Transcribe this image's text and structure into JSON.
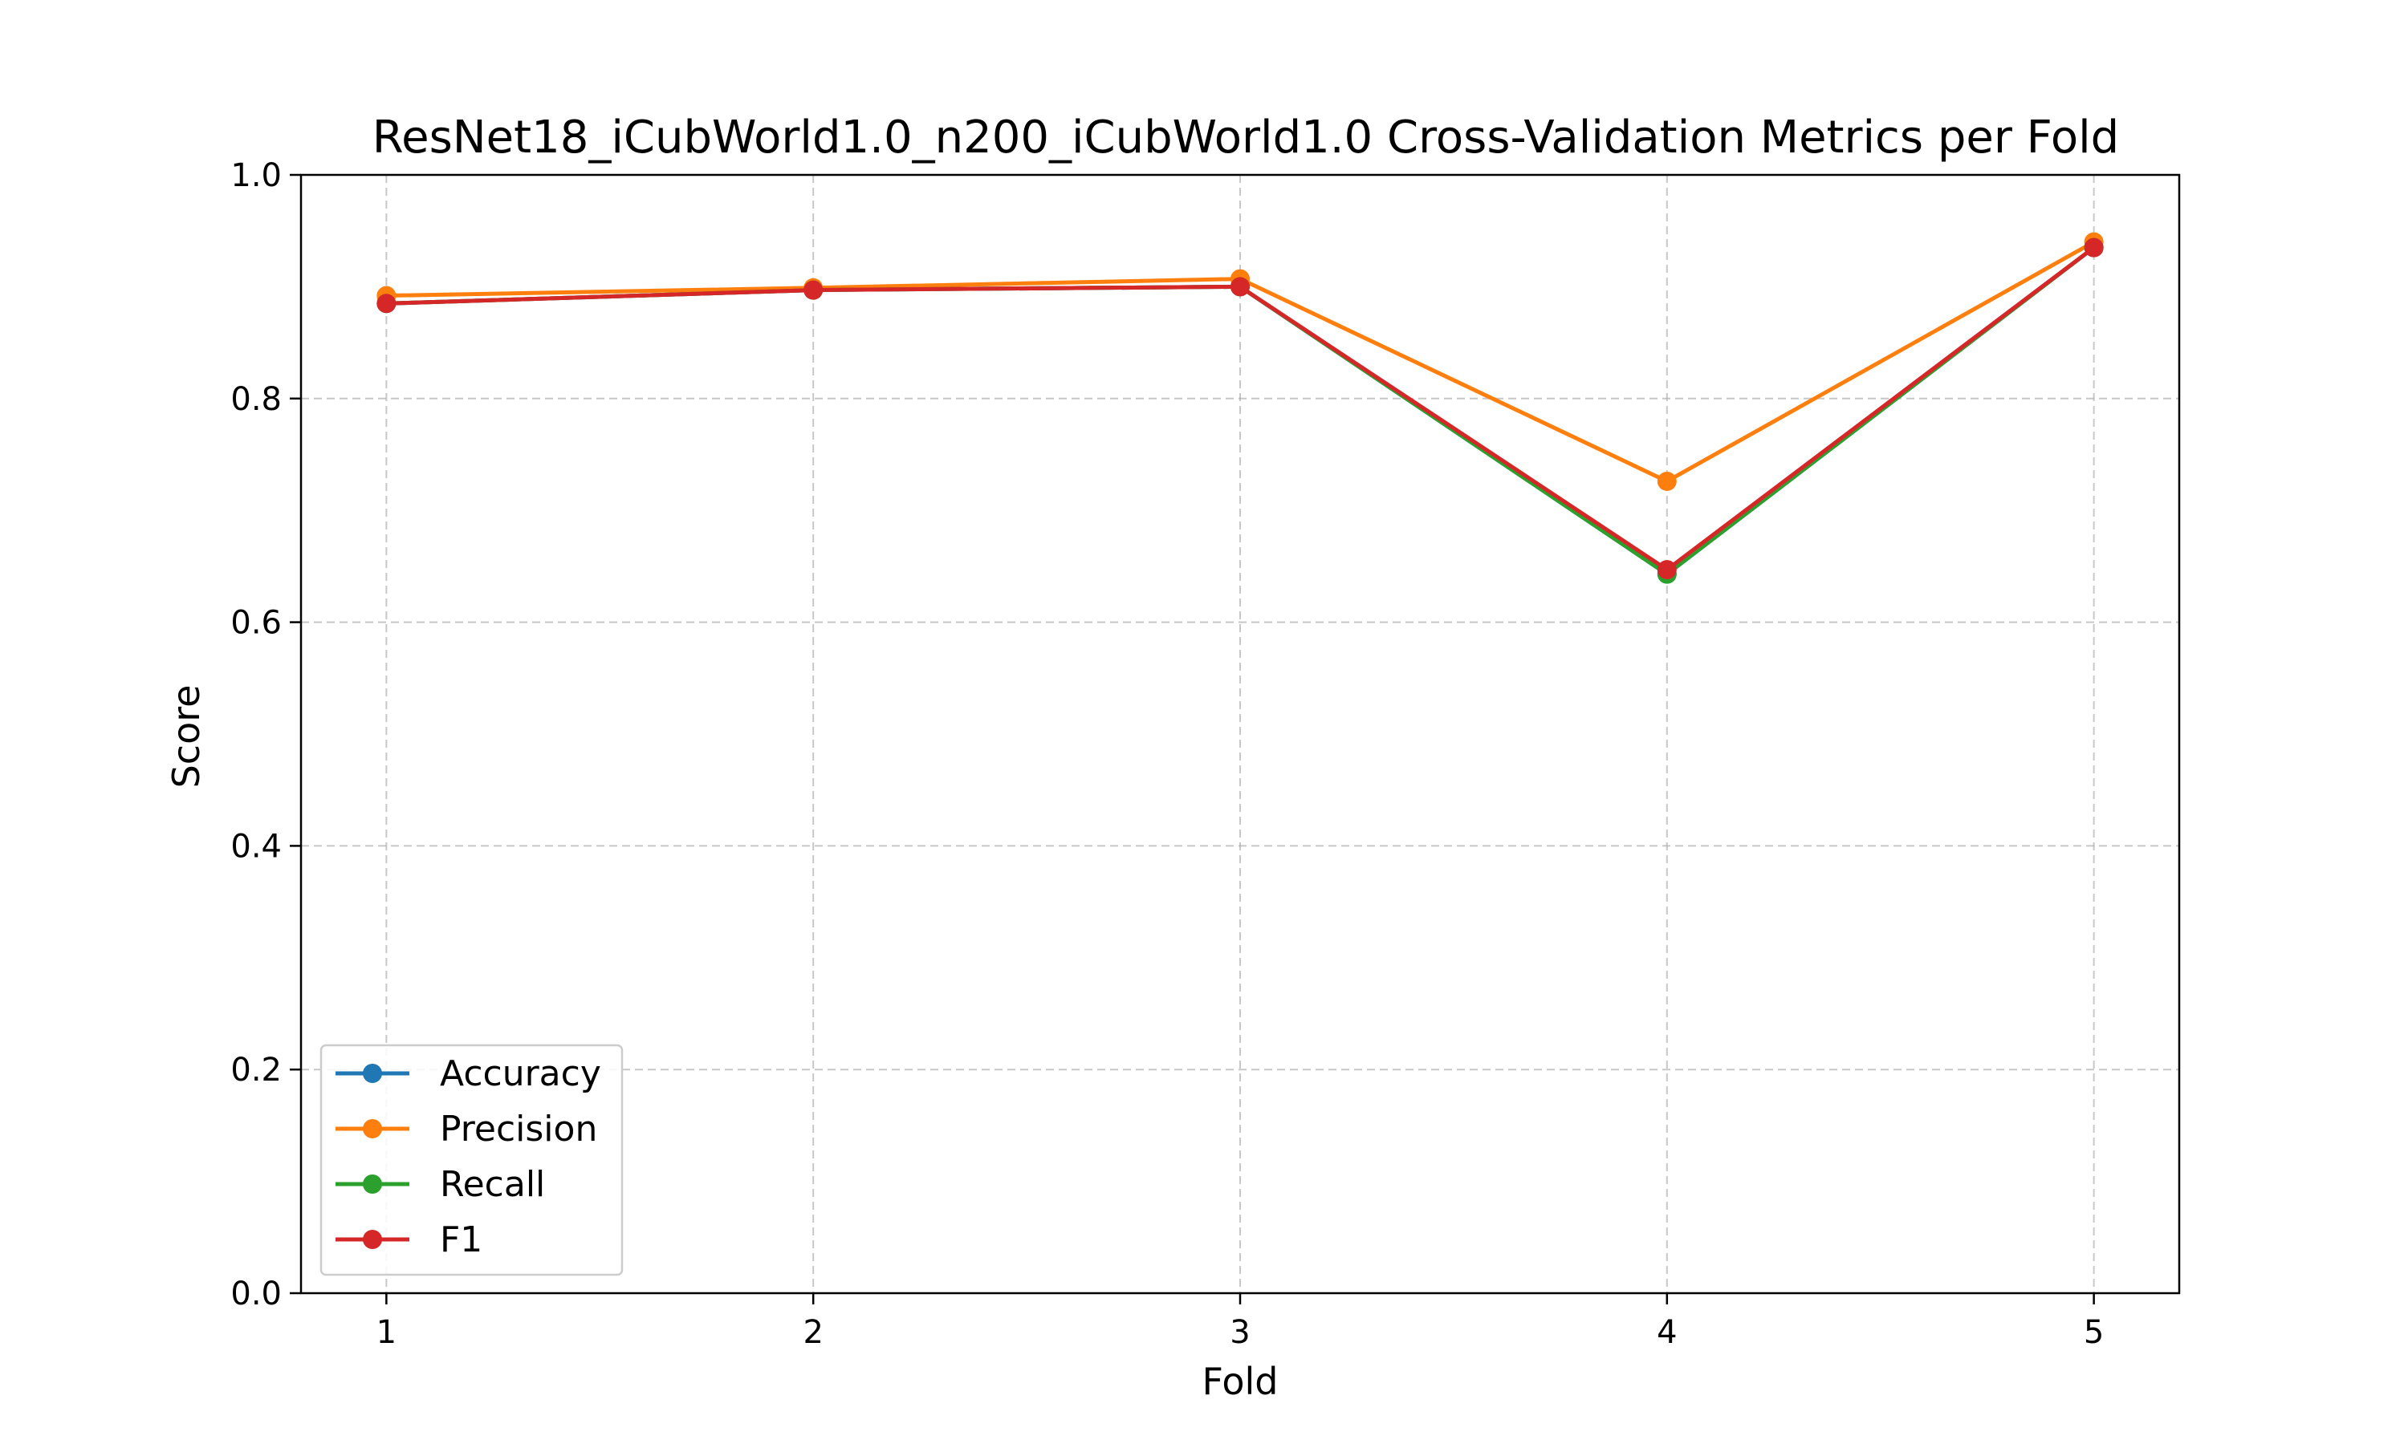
{
  "chart_data": {
    "type": "line",
    "title": "ResNet18_iCubWorld1.0_n200_iCubWorld1.0 Cross-Validation Metrics per Fold",
    "xlabel": "Fold",
    "ylabel": "Score",
    "x": [
      1,
      2,
      3,
      4,
      5
    ],
    "xlim": [
      0.8,
      5.2
    ],
    "ylim": [
      0.0,
      1.0
    ],
    "x_ticks": [
      "1",
      "2",
      "3",
      "4",
      "5"
    ],
    "y_ticks": [
      "0.0",
      "0.2",
      "0.4",
      "0.6",
      "0.8",
      "1.0"
    ],
    "grid": true,
    "legend_position": "lower-left",
    "series": [
      {
        "name": "Accuracy",
        "color": "#1f77b4",
        "values": [
          0.885,
          0.897,
          0.9,
          0.643,
          0.935
        ]
      },
      {
        "name": "Precision",
        "color": "#ff7f0e",
        "values": [
          0.892,
          0.899,
          0.907,
          0.726,
          0.94
        ]
      },
      {
        "name": "Recall",
        "color": "#2ca02c",
        "values": [
          0.885,
          0.897,
          0.9,
          0.643,
          0.935
        ]
      },
      {
        "name": "F1",
        "color": "#d62728",
        "values": [
          0.885,
          0.897,
          0.9,
          0.647,
          0.935
        ]
      }
    ]
  }
}
